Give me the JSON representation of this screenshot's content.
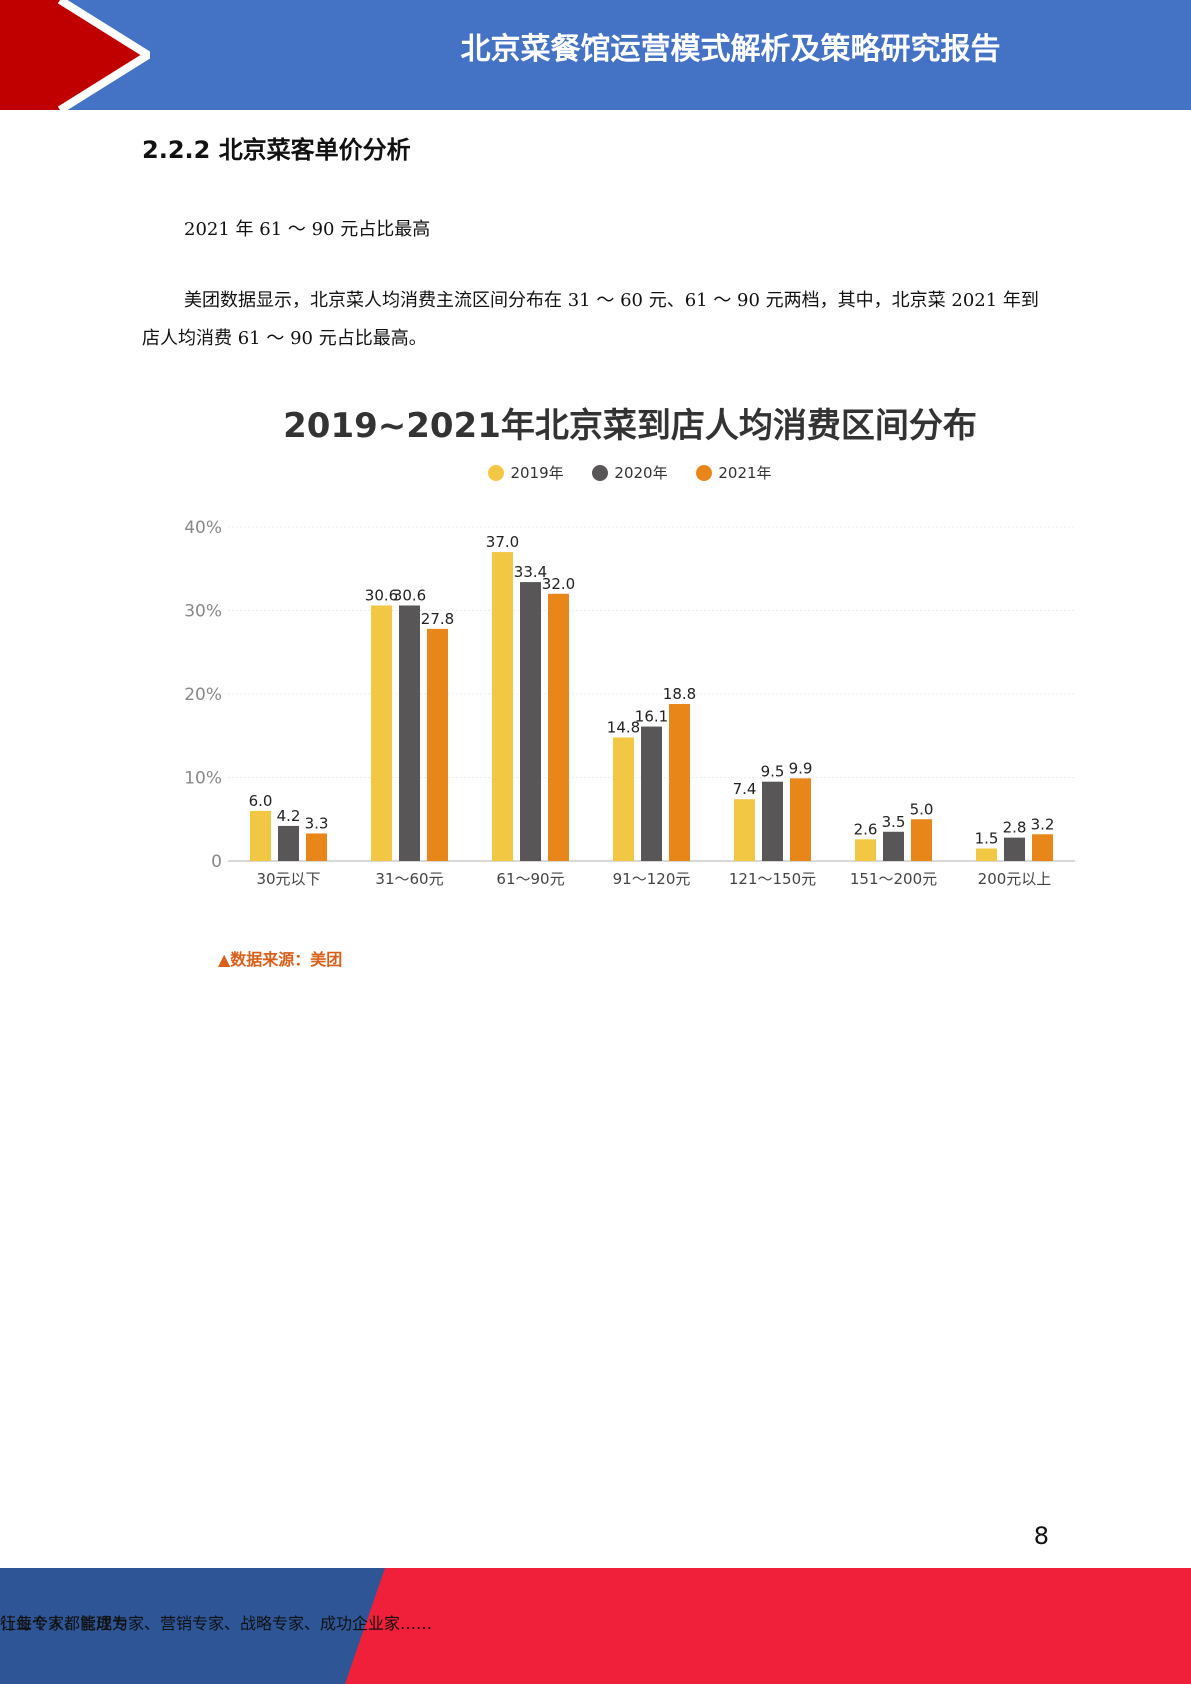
{
  "header": {
    "title": "北京菜餐馆运营模式解析及策略研究报告"
  },
  "section": {
    "heading": "2.2.2 北京菜客单价分析",
    "subtitle": "2021 年 61 ～ 90 元占比最高",
    "paragraph": "美团数据显示，北京菜人均消费主流区间分布在 31 ～ 60 元、61 ～ 90 元两档，其中，北京菜 2021 年到店人均消费 61 ～ 90 元占比最高。"
  },
  "chart_data": {
    "type": "bar",
    "title": "2019~2021年北京菜到店人均消费区间分布",
    "categories": [
      "30元以下",
      "31～60元",
      "61～90元",
      "91～120元",
      "121～150元",
      "151～200元",
      "200元以上"
    ],
    "series": [
      {
        "name": "2019年",
        "color": "#f2c744",
        "values": [
          6.0,
          30.6,
          37.0,
          14.8,
          7.4,
          2.6,
          1.5
        ]
      },
      {
        "name": "2020年",
        "color": "#595657",
        "values": [
          4.2,
          30.6,
          33.4,
          16.1,
          9.5,
          3.5,
          2.8
        ]
      },
      {
        "name": "2021年",
        "color": "#e8861a",
        "values": [
          3.3,
          27.8,
          32.0,
          18.8,
          9.9,
          5.0,
          3.2
        ]
      }
    ],
    "ylim": [
      0,
      40
    ],
    "yticks": [
      "0",
      "10%",
      "20%",
      "30%",
      "40%"
    ],
    "legend_position": "top-center",
    "grid": true,
    "source": "▲数据来源：美团"
  },
  "page": {
    "number": "8"
  },
  "footer": {
    "left": "让每个人都能成为",
    "right": "行业专家、管理专家、营销专家、战略专家、成功企业家……"
  }
}
